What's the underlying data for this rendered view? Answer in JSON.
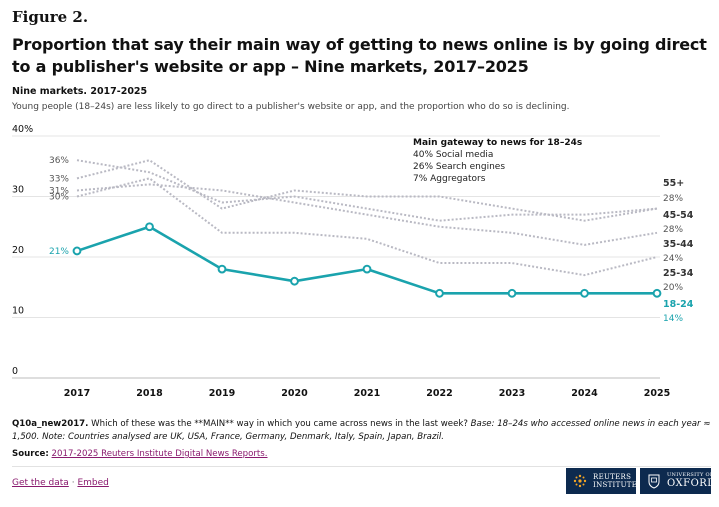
{
  "figure_label": "Figure 2.",
  "header": {
    "title": "Proportion that say their main way of getting to news online is by going direct to a publisher's website or app – Nine markets, 2017–2025",
    "subtitle": "Nine markets. 2017-2025",
    "description": "Young people (18–24s) are less likely to go direct to a publisher's website or app, and the proportion who do so is declining."
  },
  "chart_data": {
    "type": "line",
    "x": [
      "2017",
      "2018",
      "2019",
      "2020",
      "2021",
      "2022",
      "2023",
      "2024",
      "2025"
    ],
    "ylim": [
      0,
      40
    ],
    "yticks": [
      "0",
      "10",
      "20",
      "30",
      "40%"
    ],
    "ytick_values": [
      0,
      10,
      20,
      30,
      40
    ],
    "series": [
      {
        "name": "55+",
        "values": [
          36,
          34,
          29,
          30,
          28,
          26,
          27,
          27,
          28
        ],
        "highlight": false,
        "start_label": "36%",
        "end_label": "28%"
      },
      {
        "name": "45-54",
        "values": [
          33,
          36,
          28,
          31,
          30,
          30,
          28,
          26,
          28
        ],
        "highlight": false,
        "start_label": "33%",
        "end_label": "28%"
      },
      {
        "name": "35-44",
        "values": [
          31,
          32,
          31,
          29,
          27,
          25,
          24,
          22,
          24
        ],
        "highlight": false,
        "start_label": "31%",
        "end_label": "24%"
      },
      {
        "name": "25-34",
        "values": [
          30,
          33,
          24,
          24,
          23,
          19,
          19,
          17,
          20
        ],
        "highlight": false,
        "start_label": "30%",
        "end_label": "20%"
      },
      {
        "name": "18-24",
        "values": [
          21,
          25,
          18,
          16,
          18,
          14,
          14,
          14,
          14
        ],
        "highlight": true,
        "start_label": "21%",
        "end_label": "14%"
      }
    ],
    "annotation": {
      "title": "Main gateway to news for 18–24s",
      "lines": [
        "40% Social media",
        "26% Search engines",
        "7% Aggregators"
      ]
    }
  },
  "colors": {
    "highlight": "#1aa3ad",
    "others": "#b9b9c3",
    "grid": "#e4e4e4",
    "axis_text": "#111111",
    "label_text": "#555555",
    "link": "#8a1a6e"
  },
  "notes": {
    "question_id": "Q10a_new2017.",
    "question_text": "Which of these was the **MAIN** way in which you came across news in the last week?",
    "base_text": "Base: 18–24s who accessed online news in each year ≈ 1,500. Note: Countries analysed are UK, USA, France, Germany, Denmark, Italy, Spain, Japan, Brazil."
  },
  "source": {
    "label": "Source:",
    "link_text": "2017-2025 Reuters Institute Digital News Reports."
  },
  "footer": {
    "get_data": "Get the data",
    "separator": "·",
    "embed": "Embed",
    "logo_reuters_line1": "REUTERS",
    "logo_reuters_line2": "INSTITUTE",
    "logo_oxford_small": "UNIVERSITY OF",
    "logo_oxford_big": "OXFORD"
  }
}
